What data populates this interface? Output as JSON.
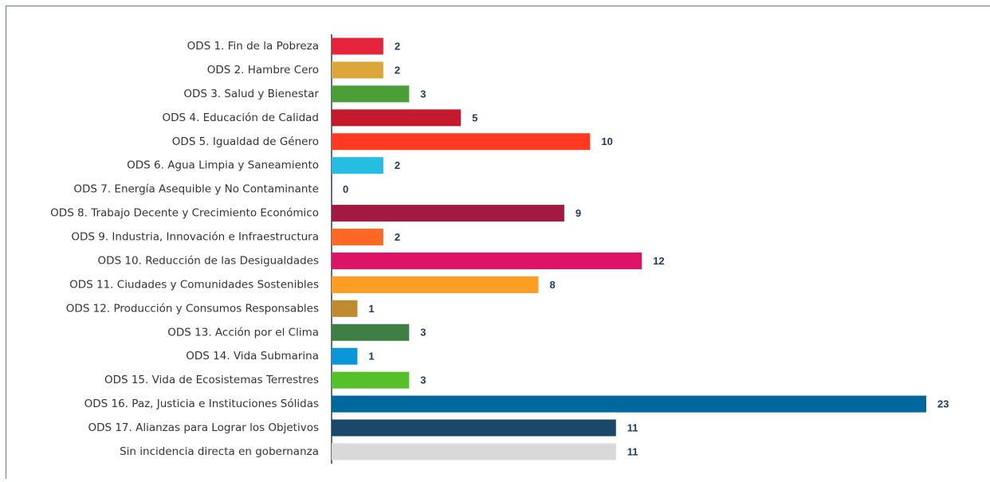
{
  "chart_data": {
    "type": "barh",
    "categories": [
      "ODS 1. Fin de la Pobreza",
      "ODS 2. Hambre Cero",
      "ODS 3. Salud y Bienestar",
      "ODS 4. Educación de Calidad",
      "ODS 5. Igualdad de Género",
      "ODS 6. Agua Limpia y Saneamiento",
      "ODS 7. Energía Asequible y No Contaminante",
      "ODS 8. Trabajo Decente y Crecimiento Económico",
      "ODS 9. Industria, Innovación e Infraestructura",
      "ODS 10. Reducción de las Desigualdades",
      "ODS 11. Ciudades y Comunidades Sostenibles",
      "ODS 12. Producción y Consumos Responsables",
      "ODS 13. Acción por el Clima",
      "ODS 14. Vida Submarina",
      "ODS 15. Vida de Ecosistemas Terrestres",
      "ODS 16. Paz, Justicia e Instituciones Sólidas",
      "ODS 17. Alianzas para Lograr los Objetivos",
      "Sin incidencia directa en gobernanza"
    ],
    "values": [
      2,
      2,
      3,
      5,
      10,
      2,
      0,
      9,
      2,
      12,
      8,
      1,
      3,
      1,
      3,
      23,
      11,
      11
    ],
    "colors": [
      "#e5243b",
      "#dda63a",
      "#4c9f38",
      "#c5192d",
      "#ff3a21",
      "#26bde2",
      "#fcc30b",
      "#a21942",
      "#fd6925",
      "#dd1367",
      "#fd9d24",
      "#bf8b2e",
      "#3f7e44",
      "#0a97d9",
      "#56c02b",
      "#00689d",
      "#19486a",
      "#d9d9d9"
    ],
    "label_color": "#1f3b5c"
  }
}
